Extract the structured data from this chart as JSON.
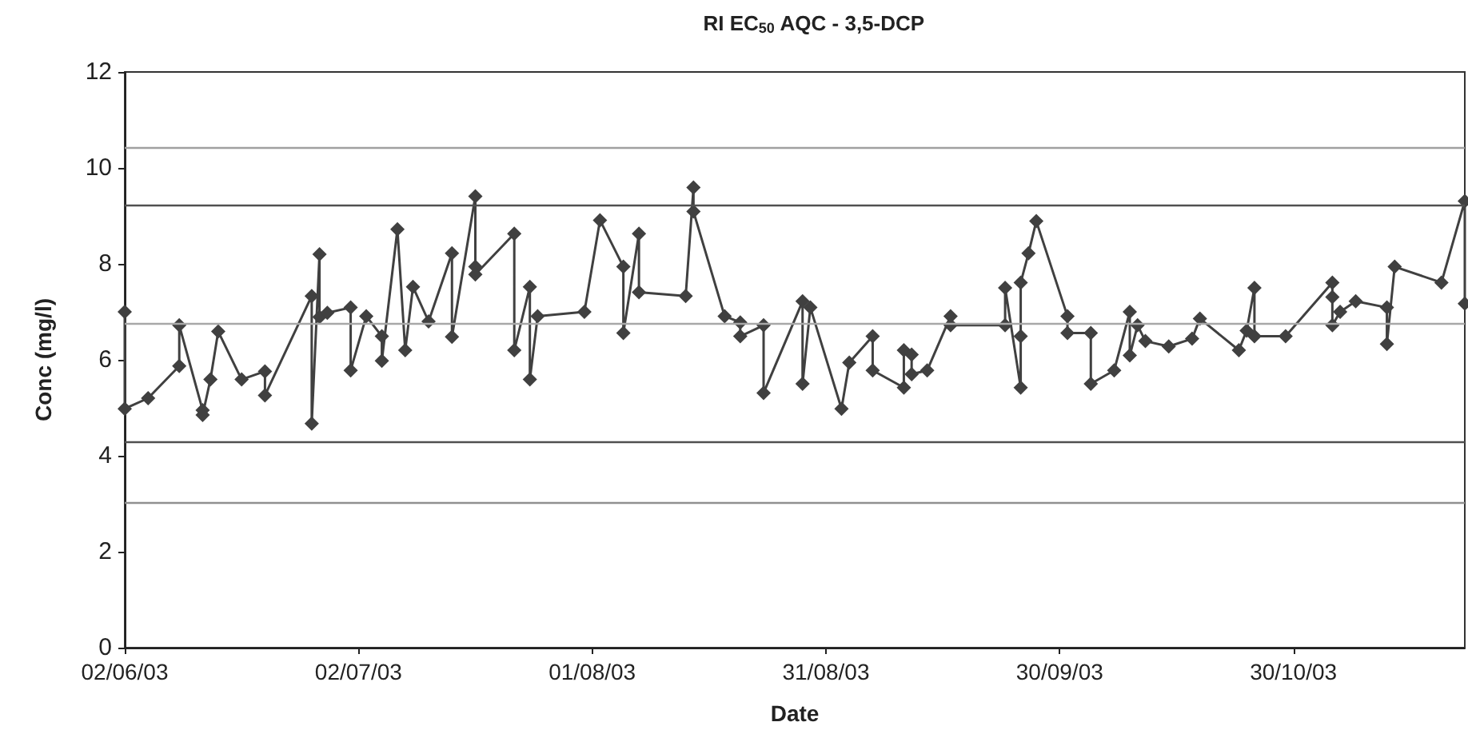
{
  "chart_data": {
    "type": "line",
    "title": "RI EC$_{50}$ AQC - 3,5-DCP",
    "xlabel": "Date",
    "ylabel": "Conc (mg/l)",
    "xlim": [
      "2003-06-02",
      "2003-11-21"
    ],
    "xticks": [
      {
        "value": "2003-06-02",
        "label": "02/06/03"
      },
      {
        "value": "2003-07-02",
        "label": "02/07/03"
      },
      {
        "value": "2003-08-01",
        "label": "01/08/03"
      },
      {
        "value": "2003-08-31",
        "label": "31/08/03"
      },
      {
        "value": "2003-09-30",
        "label": "30/09/03"
      },
      {
        "value": "2003-10-30",
        "label": "30/10/03"
      }
    ],
    "ylim": [
      0,
      12
    ],
    "yticks": [
      0,
      2,
      4,
      6,
      8,
      10,
      12
    ],
    "marker": "diamond",
    "line_style": "solid",
    "ref_lines": [
      {
        "axis": "y",
        "value": 10.43,
        "color": "#a0a0a0"
      },
      {
        "axis": "y",
        "value": 9.21,
        "color": "#505050"
      },
      {
        "axis": "y",
        "value": 6.76,
        "color": "#a8a8a8"
      },
      {
        "axis": "y",
        "value": 4.29,
        "color": "#505050"
      },
      {
        "axis": "y",
        "value": 3.04,
        "color": "#909090"
      }
    ],
    "series": [
      {
        "color": "#404040",
        "x": [
          "2003-06-02",
          "2003-06-02",
          "2003-06-05",
          "2003-06-09",
          "2003-06-09",
          "2003-06-12",
          "2003-06-12",
          "2003-06-13",
          "2003-06-14",
          "2003-06-17",
          "2003-06-20",
          "2003-06-20",
          "2003-06-26",
          "2003-06-26",
          "2003-06-27",
          "2003-06-27",
          "2003-06-28",
          "2003-07-01",
          "2003-07-01",
          "2003-07-03",
          "2003-07-05",
          "2003-07-05",
          "2003-07-07",
          "2003-07-08",
          "2003-07-09",
          "2003-07-11",
          "2003-07-14",
          "2003-07-14",
          "2003-07-17",
          "2003-07-17",
          "2003-07-17",
          "2003-07-22",
          "2003-07-22",
          "2003-07-24",
          "2003-07-24",
          "2003-07-25",
          "2003-07-31",
          "2003-08-02",
          "2003-08-05",
          "2003-08-05",
          "2003-08-07",
          "2003-08-07",
          "2003-08-13",
          "2003-08-14",
          "2003-08-14",
          "2003-08-18",
          "2003-08-20",
          "2003-08-20",
          "2003-08-23",
          "2003-08-23",
          "2003-08-28",
          "2003-08-28",
          "2003-08-29",
          "2003-09-02",
          "2003-09-03",
          "2003-09-06",
          "2003-09-06",
          "2003-09-10",
          "2003-09-10",
          "2003-09-11",
          "2003-09-11",
          "2003-09-13",
          "2003-09-16",
          "2003-09-16",
          "2003-09-23",
          "2003-09-23",
          "2003-09-25",
          "2003-09-25",
          "2003-09-25",
          "2003-09-26",
          "2003-09-27",
          "2003-10-01",
          "2003-10-01",
          "2003-10-04",
          "2003-10-04",
          "2003-10-07",
          "2003-10-09",
          "2003-10-09",
          "2003-10-10",
          "2003-10-11",
          "2003-10-14",
          "2003-10-17",
          "2003-10-18",
          "2003-10-23",
          "2003-10-24",
          "2003-10-25",
          "2003-10-25",
          "2003-10-29",
          "2003-11-04",
          "2003-11-04",
          "2003-11-04",
          "2003-11-05",
          "2003-11-07",
          "2003-11-11",
          "2003-11-11",
          "2003-11-12",
          "2003-11-18",
          "2003-11-21",
          "2003-11-21"
        ],
        "values": [
          7.0,
          4.98,
          5.2,
          5.87,
          6.72,
          4.95,
          4.85,
          5.59,
          6.59,
          5.59,
          5.76,
          5.26,
          7.33,
          4.67,
          8.2,
          6.89,
          6.98,
          7.09,
          5.78,
          6.91,
          6.49,
          5.98,
          8.72,
          6.2,
          7.52,
          6.8,
          8.22,
          6.48,
          9.41,
          7.94,
          7.78,
          8.63,
          6.2,
          7.52,
          5.59,
          6.91,
          7.0,
          8.91,
          7.94,
          6.56,
          8.63,
          7.41,
          7.33,
          9.59,
          9.09,
          6.91,
          6.78,
          6.49,
          6.72,
          5.31,
          7.22,
          5.5,
          7.09,
          4.98,
          5.94,
          6.49,
          5.78,
          5.42,
          6.2,
          6.11,
          5.7,
          5.78,
          6.91,
          6.72,
          6.72,
          7.5,
          5.42,
          6.49,
          7.61,
          8.22,
          8.89,
          6.91,
          6.56,
          6.56,
          5.5,
          5.78,
          7.0,
          6.09,
          6.72,
          6.39,
          6.28,
          6.44,
          6.86,
          6.2,
          6.61,
          7.5,
          6.49,
          6.49,
          7.61,
          7.31,
          6.72,
          7.0,
          7.22,
          7.09,
          6.33,
          7.94,
          7.61,
          9.31,
          7.17
        ]
      }
    ]
  }
}
